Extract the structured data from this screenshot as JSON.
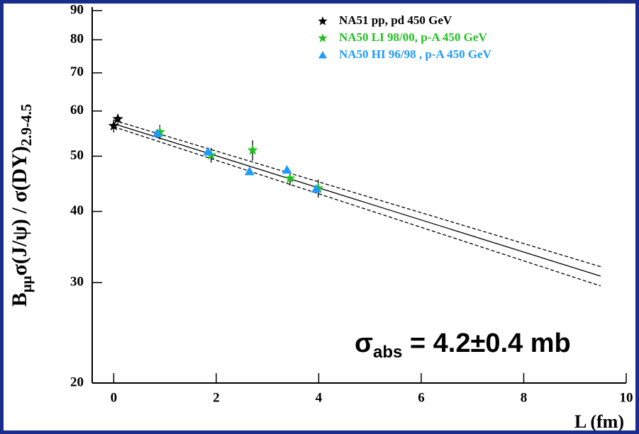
{
  "chart_data": {
    "type": "scatter",
    "x_label": "L (fm)",
    "y_label": {
      "main": "B",
      "sub": "μμ",
      "rest": "σ(J/ψ) / σ(DY)",
      "range": "2.9-4.5"
    },
    "annotation": {
      "symbol": "σ",
      "sub": "abs",
      "text": " = 4.2±0.4 mb"
    },
    "log_y": true,
    "xlim": [
      -0.42,
      10
    ],
    "ylim": [
      20,
      90
    ],
    "xticks": [
      0,
      2,
      4,
      6,
      8,
      10
    ],
    "yticks": [
      20,
      30,
      40,
      50,
      60,
      70,
      80,
      90
    ],
    "series": [
      {
        "name": "NA51 pp, pd 450 GeV",
        "color": "#000000",
        "marker": "star",
        "x": [
          0,
          0.08
        ],
        "values": [
          56.5,
          58.1
        ],
        "errors": [
          1.5,
          1.2
        ]
      },
      {
        "name": "NA50 LI 98/00, p-A 450 GeV",
        "color": "#22c022",
        "marker": "star",
        "x": [
          0.9,
          1.9,
          2.71,
          3.44,
          3.99
        ],
        "values": [
          55.1,
          50.2,
          51.2,
          45.7,
          43.9
        ],
        "errors": [
          1.6,
          1.5,
          2.1,
          1.3,
          1.6
        ]
      },
      {
        "name": "NA50 HI 96/98 , p-A 450 GeV",
        "color": "#1e9bff",
        "marker": "triangle",
        "x": [
          0.85,
          1.84,
          2.65,
          3.38,
          3.95
        ],
        "values": [
          54.8,
          50.9,
          47.0,
          47.3,
          43.8
        ]
      }
    ],
    "fits": [
      {
        "x": [
          0,
          9.5
        ],
        "values": [
          57.0,
          30.8
        ],
        "dash": false
      },
      {
        "x": [
          0,
          9.5
        ],
        "values": [
          57.8,
          32.0
        ],
        "dash": true
      },
      {
        "x": [
          0,
          9.5
        ],
        "values": [
          56.3,
          29.6
        ],
        "dash": true
      }
    ]
  }
}
